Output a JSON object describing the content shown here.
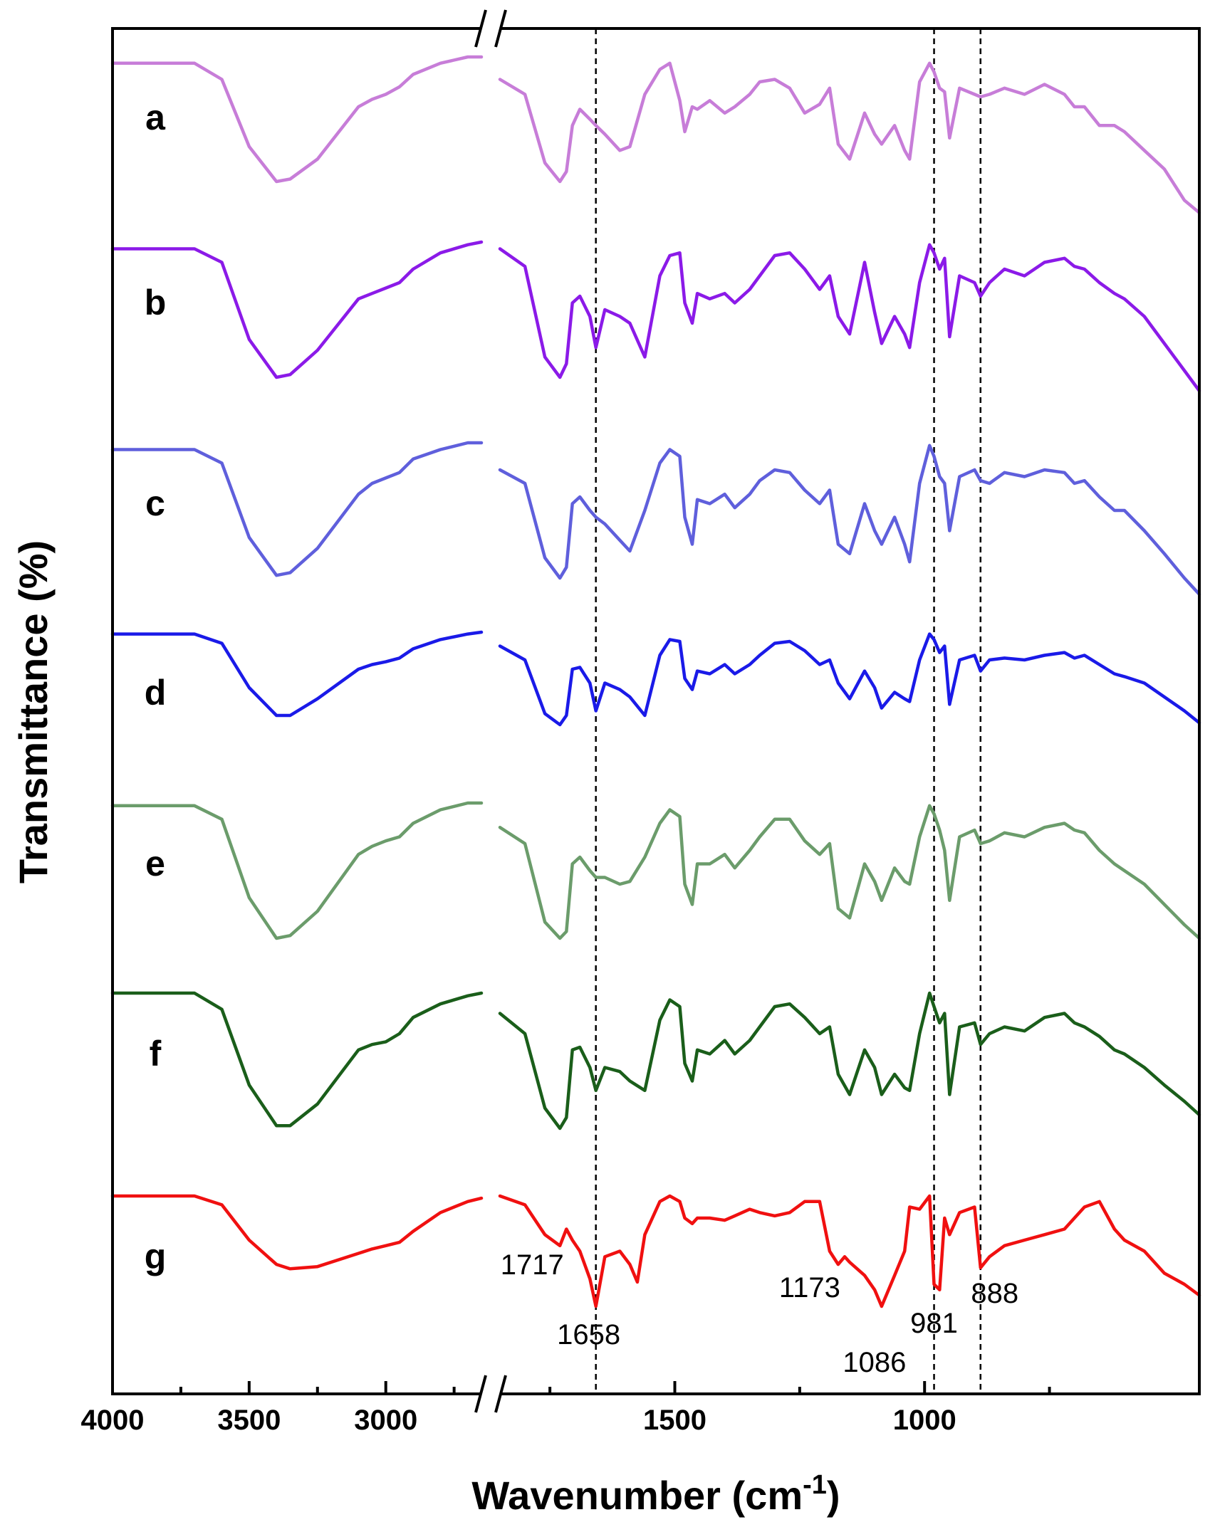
{
  "chart_data": {
    "type": "line",
    "title": "",
    "xlabel": "Wavenumber (cm",
    "xlabel_superscript": "-1",
    "xlabel_close": ")",
    "ylabel": "Transmittance (%)",
    "x_axis_break": {
      "from": 2650,
      "to": 1850
    },
    "xlim": [
      4000,
      450
    ],
    "x_ticks": [
      4000,
      3500,
      3000,
      1500,
      1000
    ],
    "reference_lines": [
      1658,
      981,
      888
    ],
    "series": [
      {
        "name": "a",
        "color": "#c77dd8",
        "x": [
          4000,
          3700,
          3600,
          3500,
          3400,
          3350,
          3250,
          3100,
          3050,
          3000,
          2950,
          2900,
          2800,
          2700,
          2650,
          1850,
          1800,
          1760,
          1730,
          1717,
          1705,
          1690,
          1670,
          1658,
          1640,
          1610,
          1590,
          1560,
          1530,
          1510,
          1490,
          1480,
          1465,
          1455,
          1430,
          1400,
          1380,
          1350,
          1330,
          1300,
          1270,
          1240,
          1210,
          1190,
          1173,
          1150,
          1120,
          1100,
          1086,
          1060,
          1040,
          1030,
          1010,
          990,
          981,
          970,
          960,
          950,
          930,
          900,
          888,
          870,
          840,
          800,
          760,
          720,
          700,
          680,
          650,
          620,
          600,
          560,
          520,
          480,
          450
        ],
        "y": [
          0.05,
          0.05,
          0.18,
          0.72,
          1.0,
          0.98,
          0.82,
          0.4,
          0.34,
          0.3,
          0.24,
          0.14,
          0.05,
          0.0,
          0.0,
          0.18,
          0.3,
          0.85,
          1.0,
          0.92,
          0.55,
          0.42,
          0.5,
          0.55,
          0.62,
          0.75,
          0.72,
          0.3,
          0.1,
          0.05,
          0.35,
          0.6,
          0.4,
          0.42,
          0.35,
          0.45,
          0.4,
          0.3,
          0.2,
          0.18,
          0.25,
          0.45,
          0.38,
          0.25,
          0.7,
          0.82,
          0.45,
          0.62,
          0.7,
          0.55,
          0.75,
          0.82,
          0.2,
          0.05,
          0.12,
          0.25,
          0.28,
          0.65,
          0.25,
          0.3,
          0.32,
          0.3,
          0.25,
          0.3,
          0.22,
          0.3,
          0.4,
          0.4,
          0.55,
          0.55,
          0.6,
          0.75,
          0.9,
          1.15,
          1.25
        ]
      },
      {
        "name": "b",
        "color": "#8b1ae8",
        "x": [
          4000,
          3700,
          3600,
          3500,
          3400,
          3350,
          3250,
          3100,
          3050,
          3000,
          2950,
          2900,
          2800,
          2700,
          2650,
          1850,
          1800,
          1760,
          1730,
          1717,
          1705,
          1690,
          1670,
          1658,
          1640,
          1610,
          1590,
          1560,
          1530,
          1510,
          1490,
          1480,
          1465,
          1455,
          1430,
          1400,
          1380,
          1350,
          1330,
          1300,
          1270,
          1240,
          1210,
          1190,
          1173,
          1150,
          1120,
          1100,
          1086,
          1060,
          1040,
          1030,
          1010,
          990,
          981,
          970,
          960,
          950,
          930,
          900,
          888,
          870,
          840,
          800,
          760,
          720,
          700,
          680,
          650,
          620,
          600,
          560,
          520,
          480,
          450
        ],
        "y": [
          0.05,
          0.05,
          0.15,
          0.72,
          1.0,
          0.98,
          0.8,
          0.42,
          0.38,
          0.34,
          0.3,
          0.2,
          0.08,
          0.02,
          0.0,
          0.05,
          0.18,
          0.85,
          1.0,
          0.9,
          0.45,
          0.4,
          0.55,
          0.78,
          0.5,
          0.55,
          0.6,
          0.85,
          0.25,
          0.1,
          0.08,
          0.45,
          0.6,
          0.38,
          0.42,
          0.38,
          0.45,
          0.35,
          0.25,
          0.1,
          0.08,
          0.2,
          0.35,
          0.25,
          0.55,
          0.68,
          0.15,
          0.52,
          0.75,
          0.55,
          0.68,
          0.78,
          0.3,
          0.02,
          0.08,
          0.2,
          0.12,
          0.7,
          0.25,
          0.3,
          0.4,
          0.3,
          0.2,
          0.25,
          0.15,
          0.12,
          0.18,
          0.2,
          0.3,
          0.38,
          0.42,
          0.55,
          0.75,
          0.95,
          1.1
        ]
      },
      {
        "name": "c",
        "color": "#5f5fdc",
        "x": [
          4000,
          3700,
          3600,
          3500,
          3400,
          3350,
          3250,
          3100,
          3050,
          3000,
          2950,
          2900,
          2800,
          2700,
          2650,
          1850,
          1800,
          1760,
          1730,
          1717,
          1705,
          1690,
          1670,
          1658,
          1640,
          1610,
          1590,
          1560,
          1530,
          1510,
          1490,
          1480,
          1465,
          1455,
          1430,
          1400,
          1380,
          1350,
          1330,
          1300,
          1270,
          1240,
          1210,
          1190,
          1173,
          1150,
          1120,
          1100,
          1086,
          1060,
          1040,
          1030,
          1010,
          990,
          981,
          970,
          960,
          950,
          930,
          900,
          888,
          870,
          840,
          800,
          760,
          720,
          700,
          680,
          650,
          620,
          600,
          560,
          520,
          480,
          450
        ],
        "y": [
          0.05,
          0.05,
          0.15,
          0.7,
          0.98,
          0.96,
          0.78,
          0.38,
          0.3,
          0.26,
          0.22,
          0.12,
          0.05,
          0.0,
          0.0,
          0.2,
          0.3,
          0.85,
          1.0,
          0.92,
          0.45,
          0.4,
          0.5,
          0.55,
          0.6,
          0.72,
          0.8,
          0.5,
          0.15,
          0.05,
          0.1,
          0.55,
          0.75,
          0.42,
          0.45,
          0.38,
          0.48,
          0.38,
          0.28,
          0.2,
          0.22,
          0.35,
          0.45,
          0.35,
          0.75,
          0.82,
          0.45,
          0.65,
          0.75,
          0.55,
          0.75,
          0.88,
          0.3,
          0.02,
          0.1,
          0.25,
          0.3,
          0.65,
          0.25,
          0.2,
          0.28,
          0.3,
          0.22,
          0.25,
          0.2,
          0.22,
          0.3,
          0.28,
          0.4,
          0.5,
          0.5,
          0.65,
          0.82,
          1.0,
          1.12
        ]
      },
      {
        "name": "d",
        "color": "#1a1ae8",
        "x": [
          4000,
          3700,
          3600,
          3500,
          3400,
          3350,
          3250,
          3100,
          3050,
          3000,
          2950,
          2900,
          2800,
          2700,
          2650,
          1850,
          1800,
          1760,
          1730,
          1717,
          1705,
          1690,
          1670,
          1658,
          1640,
          1610,
          1590,
          1560,
          1530,
          1510,
          1490,
          1480,
          1465,
          1455,
          1430,
          1400,
          1380,
          1350,
          1330,
          1300,
          1270,
          1240,
          1210,
          1190,
          1173,
          1150,
          1120,
          1100,
          1086,
          1060,
          1040,
          1030,
          1010,
          990,
          981,
          970,
          960,
          950,
          930,
          900,
          888,
          870,
          840,
          800,
          760,
          720,
          700,
          680,
          650,
          620,
          600,
          560,
          520,
          480,
          450
        ],
        "y": [
          0.02,
          0.02,
          0.12,
          0.6,
          0.9,
          0.9,
          0.72,
          0.4,
          0.35,
          0.32,
          0.28,
          0.18,
          0.08,
          0.02,
          0.0,
          0.15,
          0.3,
          0.88,
          1.0,
          0.9,
          0.4,
          0.38,
          0.55,
          0.85,
          0.55,
          0.62,
          0.7,
          0.9,
          0.25,
          0.08,
          0.1,
          0.5,
          0.62,
          0.42,
          0.45,
          0.35,
          0.45,
          0.35,
          0.25,
          0.12,
          0.1,
          0.2,
          0.35,
          0.3,
          0.55,
          0.72,
          0.42,
          0.6,
          0.82,
          0.65,
          0.72,
          0.75,
          0.3,
          0.02,
          0.08,
          0.22,
          0.15,
          0.78,
          0.3,
          0.25,
          0.42,
          0.3,
          0.28,
          0.3,
          0.25,
          0.22,
          0.28,
          0.25,
          0.35,
          0.45,
          0.48,
          0.55,
          0.7,
          0.85,
          0.98
        ]
      },
      {
        "name": "e",
        "color": "#6b9c6b",
        "x": [
          4000,
          3700,
          3600,
          3500,
          3400,
          3350,
          3250,
          3100,
          3050,
          3000,
          2950,
          2900,
          2800,
          2700,
          2650,
          1850,
          1800,
          1760,
          1730,
          1717,
          1705,
          1690,
          1670,
          1658,
          1640,
          1610,
          1590,
          1560,
          1530,
          1510,
          1490,
          1480,
          1465,
          1455,
          1430,
          1400,
          1380,
          1350,
          1330,
          1300,
          1270,
          1240,
          1210,
          1190,
          1173,
          1150,
          1120,
          1100,
          1086,
          1060,
          1040,
          1030,
          1010,
          990,
          981,
          970,
          960,
          950,
          930,
          900,
          888,
          870,
          840,
          800,
          760,
          720,
          700,
          680,
          650,
          620,
          600,
          560,
          520,
          480,
          450
        ],
        "y": [
          0.02,
          0.02,
          0.12,
          0.7,
          1.0,
          0.98,
          0.8,
          0.38,
          0.32,
          0.28,
          0.25,
          0.15,
          0.05,
          0.0,
          0.0,
          0.18,
          0.3,
          0.88,
          1.0,
          0.95,
          0.45,
          0.4,
          0.5,
          0.55,
          0.55,
          0.6,
          0.58,
          0.4,
          0.15,
          0.05,
          0.1,
          0.6,
          0.75,
          0.45,
          0.45,
          0.38,
          0.48,
          0.35,
          0.25,
          0.12,
          0.12,
          0.28,
          0.38,
          0.3,
          0.78,
          0.85,
          0.45,
          0.58,
          0.72,
          0.48,
          0.58,
          0.6,
          0.25,
          0.02,
          0.08,
          0.2,
          0.35,
          0.72,
          0.25,
          0.2,
          0.3,
          0.28,
          0.22,
          0.25,
          0.18,
          0.15,
          0.2,
          0.22,
          0.35,
          0.45,
          0.5,
          0.6,
          0.75,
          0.9,
          1.0
        ]
      },
      {
        "name": "f",
        "color": "#1a5e1a",
        "x": [
          4000,
          3700,
          3600,
          3500,
          3400,
          3350,
          3250,
          3100,
          3050,
          3000,
          2950,
          2900,
          2800,
          2700,
          2650,
          1850,
          1800,
          1760,
          1730,
          1717,
          1705,
          1690,
          1670,
          1658,
          1640,
          1610,
          1590,
          1560,
          1530,
          1510,
          1490,
          1480,
          1465,
          1455,
          1430,
          1400,
          1380,
          1350,
          1330,
          1300,
          1270,
          1240,
          1210,
          1190,
          1173,
          1150,
          1120,
          1100,
          1086,
          1060,
          1040,
          1030,
          1010,
          990,
          981,
          970,
          960,
          950,
          930,
          900,
          888,
          870,
          840,
          800,
          760,
          720,
          700,
          680,
          650,
          620,
          600,
          560,
          520,
          480,
          450
        ],
        "y": [
          0.0,
          0.0,
          0.12,
          0.68,
          0.98,
          0.98,
          0.82,
          0.42,
          0.38,
          0.36,
          0.3,
          0.18,
          0.08,
          0.02,
          0.0,
          0.15,
          0.3,
          0.85,
          1.0,
          0.92,
          0.42,
          0.4,
          0.55,
          0.72,
          0.55,
          0.58,
          0.65,
          0.72,
          0.2,
          0.05,
          0.1,
          0.52,
          0.65,
          0.42,
          0.45,
          0.35,
          0.45,
          0.35,
          0.25,
          0.1,
          0.08,
          0.18,
          0.3,
          0.25,
          0.6,
          0.75,
          0.42,
          0.55,
          0.75,
          0.6,
          0.7,
          0.72,
          0.3,
          0.0,
          0.1,
          0.22,
          0.15,
          0.75,
          0.25,
          0.22,
          0.38,
          0.3,
          0.25,
          0.28,
          0.18,
          0.15,
          0.22,
          0.25,
          0.32,
          0.42,
          0.45,
          0.55,
          0.68,
          0.8,
          0.9
        ]
      },
      {
        "name": "g",
        "color": "#f01010",
        "x": [
          4000,
          3700,
          3600,
          3500,
          3400,
          3350,
          3250,
          3100,
          3050,
          3000,
          2950,
          2900,
          2800,
          2700,
          2650,
          1850,
          1800,
          1760,
          1730,
          1717,
          1705,
          1690,
          1670,
          1658,
          1640,
          1610,
          1590,
          1575,
          1560,
          1530,
          1510,
          1490,
          1480,
          1465,
          1455,
          1430,
          1400,
          1380,
          1350,
          1330,
          1300,
          1270,
          1240,
          1210,
          1190,
          1173,
          1160,
          1150,
          1120,
          1100,
          1086,
          1060,
          1040,
          1030,
          1010,
          990,
          981,
          970,
          960,
          950,
          930,
          900,
          888,
          870,
          840,
          800,
          760,
          720,
          700,
          680,
          650,
          620,
          600,
          560,
          520,
          480,
          450
        ],
        "y": [
          0.0,
          0.0,
          0.08,
          0.4,
          0.62,
          0.66,
          0.64,
          0.52,
          0.48,
          0.45,
          0.42,
          0.32,
          0.15,
          0.05,
          0.02,
          0.0,
          0.08,
          0.35,
          0.45,
          0.3,
          0.4,
          0.5,
          0.75,
          1.0,
          0.55,
          0.5,
          0.62,
          0.78,
          0.35,
          0.05,
          0.0,
          0.05,
          0.2,
          0.25,
          0.2,
          0.2,
          0.22,
          0.18,
          0.12,
          0.15,
          0.18,
          0.15,
          0.05,
          0.05,
          0.5,
          0.62,
          0.55,
          0.6,
          0.72,
          0.85,
          1.0,
          0.72,
          0.5,
          0.1,
          0.12,
          0.0,
          0.8,
          0.85,
          0.2,
          0.35,
          0.15,
          0.1,
          0.65,
          0.55,
          0.45,
          0.4,
          0.35,
          0.3,
          0.2,
          0.1,
          0.05,
          0.3,
          0.4,
          0.5,
          0.7,
          0.8,
          0.9
        ]
      }
    ],
    "peak_labels": [
      {
        "text": "1717",
        "x": 1717
      },
      {
        "text": "1658",
        "x": 1658
      },
      {
        "text": "1173",
        "x": 1173
      },
      {
        "text": "1086",
        "x": 1086
      },
      {
        "text": "981",
        "x": 981
      },
      {
        "text": "888",
        "x": 888
      }
    ]
  }
}
